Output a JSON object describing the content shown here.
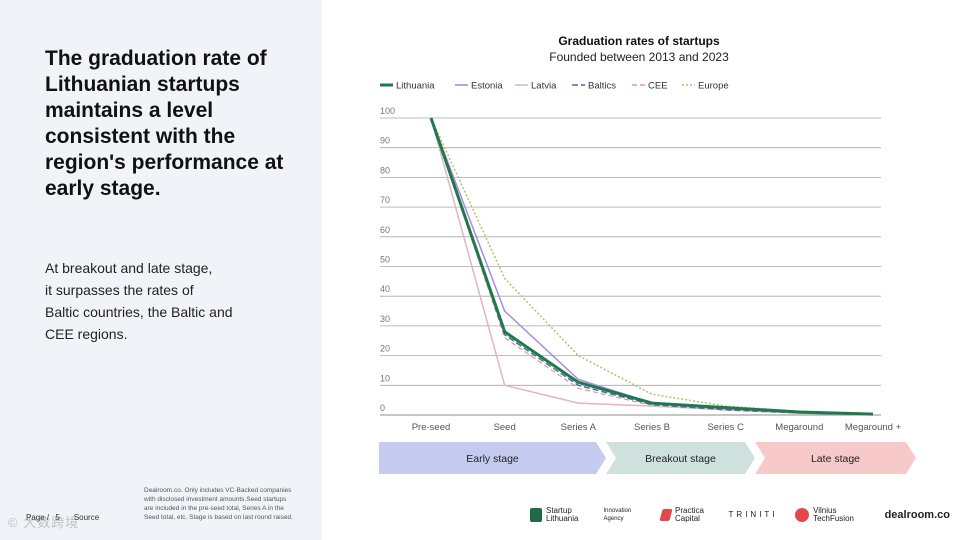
{
  "headline": "The graduation rate of Lithuanian startups maintains a level consistent with the region's performance at early stage.",
  "body_lines": [
    "At breakout and late stage,",
    "it surpasses the rates of",
    "Baltic countries, the Baltic and",
    "CEE regions."
  ],
  "footnote": "Dealroom.co. Only includes VC-Backed companies with disclosed investment amounts.Seed startups are included in the pre-seed total, Series A in the Seed total, etc. Stage is based on last round raised.",
  "page_label": "Page",
  "page_suffix": "5",
  "page_source": "Source",
  "watermark": "© 大数跨境",
  "logos": [
    "Startup Lithuania",
    "Innovation Agency",
    "Practica Capital",
    "TRINITI",
    "Vilnius TechFusion",
    "dealroom.co"
  ],
  "stages": [
    {
      "label": "Early stage",
      "color": "#c5cbef"
    },
    {
      "label": "Breakout stage",
      "color": "#cfe1dc"
    },
    {
      "label": "Late stage",
      "color": "#f8c9c9"
    }
  ],
  "chart_data": {
    "type": "line",
    "title": "Graduation rates of startups",
    "subtitle": "Founded between 2013 and 2023",
    "categories": [
      "Pre-seed",
      "Seed",
      "Series A",
      "Series B",
      "Series C",
      "Megaround",
      "Megaround +"
    ],
    "ylim": [
      0,
      100
    ],
    "yticks": [
      0,
      10,
      20,
      30,
      40,
      50,
      60,
      70,
      80,
      90,
      100
    ],
    "grid": true,
    "legend": "top",
    "series": [
      {
        "name": "Lithuania",
        "color": "#1e7a4c",
        "dash": "",
        "width": 3,
        "values": [
          100,
          28,
          11,
          4,
          2.5,
          1,
          0.3
        ]
      },
      {
        "name": "Estonia",
        "color": "#a98be0",
        "dash": "",
        "width": 1.5,
        "values": [
          100,
          35,
          12,
          4,
          2,
          0.8,
          0.2
        ]
      },
      {
        "name": "Latvia",
        "color": "#e3b4c4",
        "dash": "",
        "width": 1.5,
        "values": [
          100,
          10,
          4,
          3,
          1.8,
          0.6,
          0.1
        ]
      },
      {
        "name": "Baltics",
        "color": "#3a6fb0",
        "dash": "6,3",
        "width": 1.5,
        "values": [
          100,
          27,
          10,
          3.5,
          1.8,
          0.7,
          0.2
        ]
      },
      {
        "name": "CEE",
        "color": "#f08f8f",
        "dash": "5,3",
        "width": 1.2,
        "values": [
          100,
          26,
          9,
          3.2,
          1.6,
          0.6,
          0.2
        ]
      },
      {
        "name": "Europe",
        "color": "#c2b86a",
        "dash": "2,2",
        "width": 1.5,
        "values": [
          100,
          46,
          20,
          7,
          3,
          1.2,
          0.4
        ]
      }
    ]
  }
}
